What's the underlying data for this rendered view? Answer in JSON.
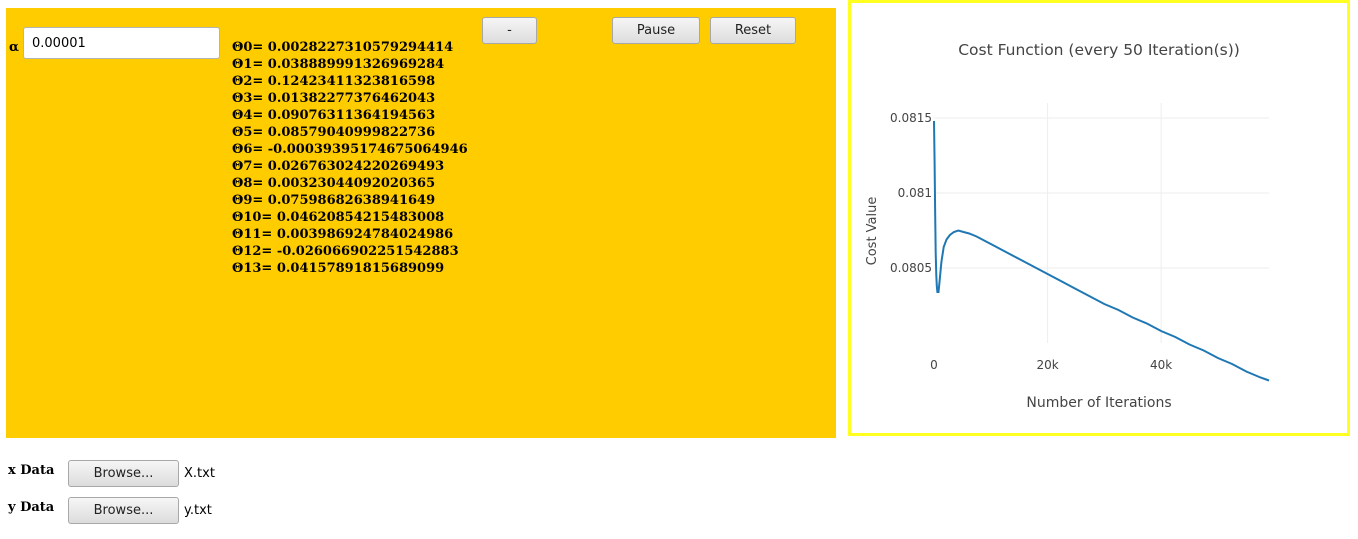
{
  "controls": {
    "alpha_label": "α",
    "alpha_value": "0.00001",
    "minus_label": "-",
    "pause_label": "Pause",
    "reset_label": "Reset"
  },
  "thetas": [
    "Θ0= 0.0028227310579294414",
    "Θ1= 0.038889991326969284",
    "Θ2= 0.12423411323816598",
    "Θ3= 0.01382277376462043",
    "Θ4= 0.09076311364194563",
    "Θ5= 0.08579040999822736",
    "Θ6= -0.00039395174675064946",
    "Θ7= 0.026763024220269493",
    "Θ8= 0.00323044092020365",
    "Θ9= 0.07598682638941649",
    "Θ10= 0.04620854215483008",
    "Θ11= 0.003986924784024986",
    "Θ12= -0.026066902251542883",
    "Θ13= 0.04157891815689099"
  ],
  "files": {
    "x_label": "x Data",
    "x_browse": "Browse...",
    "x_file": "X.txt",
    "y_label": "y Data",
    "y_browse": "Browse...",
    "y_file": "y.txt"
  },
  "colors": {
    "panel": "#ffcc00",
    "chart_border": "#ffff22",
    "line": "#1f77b4"
  },
  "chart_data": {
    "type": "line",
    "title": "Cost Function (every 50 Iteration(s))",
    "xlabel": "Number of Iterations",
    "ylabel": "Cost Value",
    "xlim": [
      0,
      59000
    ],
    "ylim": [
      0.08,
      0.0816
    ],
    "x_ticks": [
      0,
      20000,
      40000
    ],
    "x_tick_labels": [
      "0",
      "20k",
      "40k"
    ],
    "y_ticks": [
      0.0805,
      0.081,
      0.0815
    ],
    "y_tick_labels": [
      "0.0805",
      "0.081",
      "0.0815"
    ],
    "grid": true,
    "series": [
      {
        "x": [
          0,
          100,
          200,
          300,
          400,
          500,
          600,
          800,
          1000,
          1300,
          1700,
          2200,
          2800,
          3500,
          4300,
          5200,
          6200,
          7500,
          9000,
          11000,
          13000,
          15000,
          17500,
          20000,
          22500,
          25000,
          27500,
          30000,
          32500,
          35000,
          37500,
          40000,
          42500,
          45000,
          47500,
          50000,
          52500,
          55000,
          57500,
          59000
        ],
        "y": [
          0.08148,
          0.0812,
          0.0809,
          0.0806,
          0.08045,
          0.08038,
          0.08034,
          0.08034,
          0.08042,
          0.08054,
          0.08064,
          0.08069,
          0.08072,
          0.08074,
          0.08075,
          0.08074,
          0.08073,
          0.08071,
          0.08068,
          0.08064,
          0.0806,
          0.08056,
          0.08051,
          0.08046,
          0.08041,
          0.08036,
          0.08031,
          0.08026,
          0.08022,
          0.08017,
          0.08013,
          0.08008,
          0.08004,
          0.07999,
          0.07995,
          0.0799,
          0.07986,
          0.07981,
          0.07977,
          0.07975
        ]
      }
    ]
  }
}
